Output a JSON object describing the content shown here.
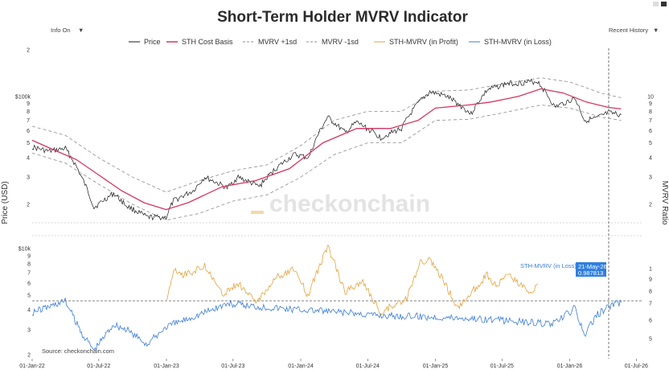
{
  "header": {
    "title": "Short-Term Holder MVRV Indicator",
    "info_toggle": "Info On",
    "range_select": "Recent History",
    "dropdown_glyph": "▼"
  },
  "watermark": "checkonchain",
  "source": "Source: checkonchain.com",
  "hover": {
    "series": "STH-MVRV (in Loss)",
    "date": "21-May-26",
    "value": "0.987813"
  },
  "colors": {
    "price": "#1a1a1a",
    "cost_basis": "#d7345f",
    "band": "#8c8c8c",
    "profit": "#e2a33c",
    "loss": "#3b7dd8",
    "grid": "#cccccc",
    "tooltip": "#2f7fe0"
  },
  "chart_data": {
    "type": "line",
    "title": "Short-Term Holder MVRV Indicator",
    "x_ticks": [
      "01-Jan-22",
      "01-Jul-22",
      "01-Jan-23",
      "01-Jul-23",
      "01-Jan-24",
      "01-Jul-24",
      "01-Jan-25",
      "01-Jul-25",
      "01-Jan-26",
      "01-Jul-26"
    ],
    "xlim": [
      "2022-01-01",
      "2026-07-20"
    ],
    "panels": [
      {
        "name": "price",
        "ylabel": "Price (USD)",
        "y_scale": "log",
        "ylim": [
          13000,
          200000
        ],
        "y_ticks_left": [
          "2",
          "3",
          "4",
          "5",
          "6",
          "7",
          "8",
          "9",
          "$100k",
          "2"
        ],
        "y_ticks_left_values": [
          20000,
          30000,
          40000,
          50000,
          60000,
          70000,
          80000,
          90000,
          100000,
          200000
        ],
        "y2label": "MVRV Ratio",
        "y2_ticks": [
          "2",
          "3",
          "4",
          "5",
          "6",
          "7",
          "8",
          "9",
          "10"
        ],
        "y2_ticks_values": [
          20000,
          30000,
          40000,
          50000,
          60000,
          70000,
          80000,
          90000,
          100000
        ],
        "series": [
          {
            "name": "Price",
            "dates": [
              "2022-01-01",
              "2022-02-15",
              "2022-04-01",
              "2022-05-15",
              "2022-06-18",
              "2022-08-10",
              "2022-09-15",
              "2022-11-09",
              "2022-12-31",
              "2023-01-20",
              "2023-03-15",
              "2023-04-15",
              "2023-06-15",
              "2023-07-15",
              "2023-09-10",
              "2023-10-25",
              "2023-12-15",
              "2024-01-23",
              "2024-03-14",
              "2024-05-01",
              "2024-06-01",
              "2024-08-05",
              "2024-10-01",
              "2024-11-15",
              "2024-12-17",
              "2025-02-01",
              "2025-04-08",
              "2025-05-22",
              "2025-07-14",
              "2025-08-14",
              "2025-10-06",
              "2025-11-21",
              "2026-01-15",
              "2026-02-10",
              "2026-03-15",
              "2026-04-15",
              "2026-05-21"
            ],
            "values": [
              47000,
              44000,
              46000,
              30000,
              19000,
              23500,
              19500,
              16500,
              16500,
              21000,
              24500,
              30000,
              25500,
              30000,
              26000,
              34000,
              42000,
              40000,
              73000,
              58000,
              68000,
              54000,
              62000,
              90000,
              107000,
              100000,
              77000,
              110000,
              121000,
              122000,
              125000,
              85000,
              97000,
              70000,
              72000,
              78000,
              76000
            ]
          },
          {
            "name": "STH Cost Basis",
            "dates": [
              "2022-01-01",
              "2022-03-01",
              "2022-05-01",
              "2022-07-01",
              "2022-09-01",
              "2022-11-01",
              "2022-12-31",
              "2023-03-01",
              "2023-06-01",
              "2023-09-01",
              "2023-12-01",
              "2024-03-01",
              "2024-06-01",
              "2024-09-01",
              "2024-11-15",
              "2025-01-01",
              "2025-04-01",
              "2025-06-01",
              "2025-08-15",
              "2025-10-15",
              "2025-12-15",
              "2026-02-15",
              "2026-04-15",
              "2026-05-21"
            ],
            "values": [
              52000,
              45000,
              39000,
              31000,
              24500,
              20500,
              18500,
              20500,
              26000,
              28500,
              34000,
              50000,
              62000,
              62000,
              70000,
              84000,
              88000,
              92000,
              100000,
              112000,
              105000,
              92000,
              85000,
              83000
            ]
          },
          {
            "name": "MVRV +1sd",
            "dates": [
              "2022-01-01",
              "2022-04-01",
              "2022-07-01",
              "2022-10-01",
              "2022-12-31",
              "2023-04-01",
              "2023-07-01",
              "2023-10-01",
              "2024-01-01",
              "2024-04-01",
              "2024-07-01",
              "2024-10-01",
              "2025-01-01",
              "2025-04-01",
              "2025-07-01",
              "2025-10-15",
              "2026-01-01",
              "2026-04-01",
              "2026-05-21"
            ],
            "values": [
              64000,
              56000,
              40000,
              30000,
              24000,
              28500,
              33000,
              36000,
              48000,
              70000,
              80000,
              80000,
              108000,
              110000,
              120000,
              132000,
              124000,
              104000,
              98000
            ]
          },
          {
            "name": "MVRV -1sd",
            "dates": [
              "2022-01-01",
              "2022-04-01",
              "2022-07-01",
              "2022-10-01",
              "2022-12-31",
              "2023-04-01",
              "2023-07-01",
              "2023-10-01",
              "2024-01-01",
              "2024-04-01",
              "2024-07-01",
              "2024-10-01",
              "2025-01-01",
              "2025-04-01",
              "2025-07-01",
              "2025-10-15",
              "2026-01-01",
              "2026-04-01",
              "2026-05-21"
            ],
            "values": [
              43000,
              37000,
              27000,
              20000,
              15800,
              17500,
              21000,
              23000,
              30000,
              42000,
              50000,
              50000,
              70000,
              71000,
              78000,
              88000,
              84000,
              73000,
              70000
            ]
          }
        ]
      },
      {
        "name": "mvrv",
        "y_ticks_left": [
          "2",
          "3",
          "4",
          "5",
          "6",
          "7",
          "8",
          "9",
          "$10k"
        ],
        "y_ticks_right": [
          "5",
          "6",
          "7",
          "8",
          "9",
          "1"
        ],
        "threshold": 1,
        "series": [
          {
            "name": "STH-MVRV (in Profit)",
            "dates": [
              "2022-12-31",
              "2023-01-20",
              "2023-02-15",
              "2023-03-15",
              "2023-04-15",
              "2023-06-01",
              "2023-07-15",
              "2023-09-01",
              "2023-10-25",
              "2023-12-15",
              "2024-01-20",
              "2024-03-14",
              "2024-05-01",
              "2024-06-15",
              "2024-08-05",
              "2024-10-15",
              "2024-11-20",
              "2024-12-17",
              "2025-02-01",
              "2025-03-01",
              "2025-05-22",
              "2025-06-15",
              "2025-07-14",
              "2025-08-14",
              "2025-09-15",
              "2025-10-06"
            ],
            "values": [
              0.99,
              1.22,
              1.18,
              1.2,
              1.25,
              1.04,
              1.12,
              0.99,
              1.16,
              1.22,
              1.04,
              1.38,
              1.06,
              1.14,
              0.92,
              1.02,
              1.26,
              1.28,
              1.1,
              0.95,
              1.18,
              1.1,
              1.18,
              1.12,
              1.06,
              1.12
            ]
          },
          {
            "name": "STH-MVRV (in Loss)",
            "dates": [
              "2022-01-01",
              "2022-02-15",
              "2022-04-01",
              "2022-05-15",
              "2022-06-18",
              "2022-08-10",
              "2022-09-15",
              "2022-11-09",
              "2022-12-31",
              "2023-06-15",
              "2023-09-10",
              "2024-08-05",
              "2025-04-08",
              "2025-11-21",
              "2026-01-15",
              "2026-02-10",
              "2026-03-15",
              "2026-04-15",
              "2026-05-21"
            ],
            "values": [
              0.92,
              0.96,
              1.0,
              0.78,
              0.66,
              0.84,
              0.8,
              0.7,
              0.82,
              0.98,
              0.96,
              0.9,
              0.88,
              0.84,
              0.95,
              0.76,
              0.9,
              0.96,
              0.987813
            ]
          }
        ]
      }
    ],
    "legend": [
      "Price",
      "STH Cost Basis",
      "MVRV +1sd",
      "MVRV -1sd",
      "STH-MVRV (in Profit)",
      "STH-MVRV (in Loss)"
    ],
    "legend_position": "top",
    "grid": false
  }
}
